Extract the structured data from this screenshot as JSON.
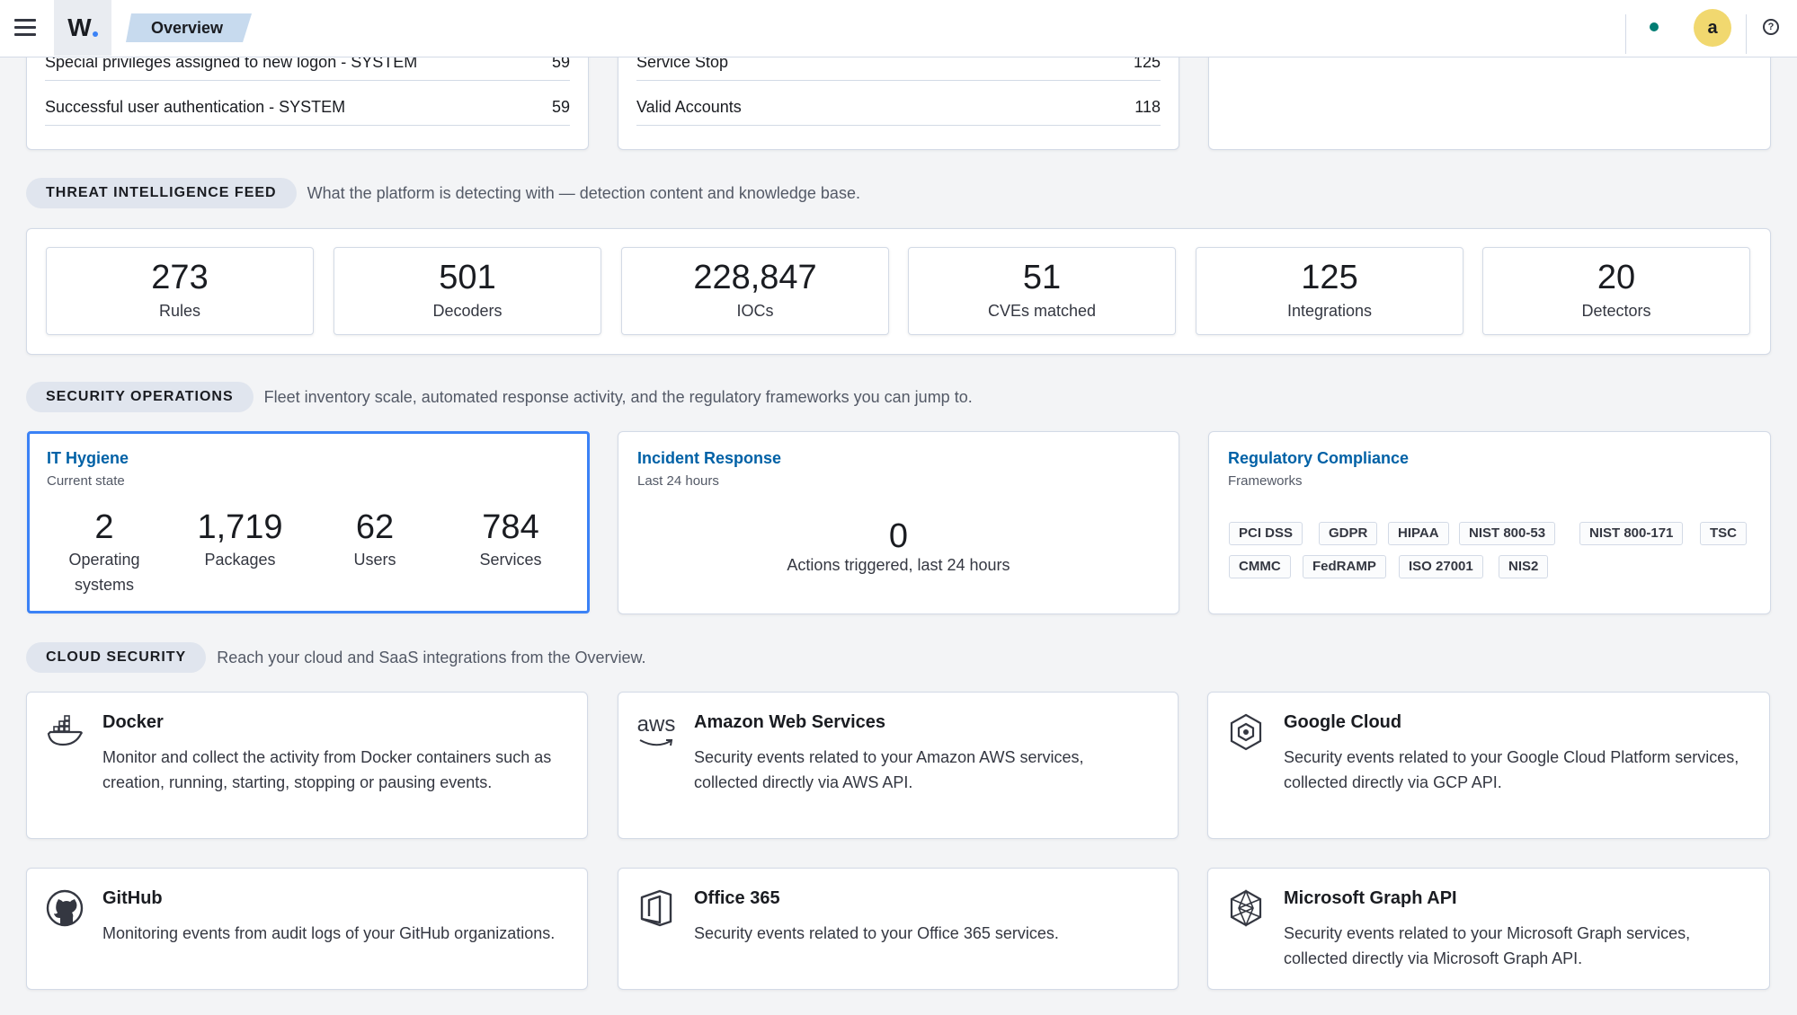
{
  "header": {
    "logo": "W",
    "breadcrumb": "Overview",
    "avatar_initial": "a",
    "help_glyph": "?",
    "status_color": "#017d73"
  },
  "top_tables": {
    "left_rows": [
      {
        "label": "Special privileges assigned to new logon - SYSTEM",
        "value": "59"
      },
      {
        "label": "Successful user authentication - SYSTEM",
        "value": "59"
      }
    ],
    "middle_rows": [
      {
        "label": "Service Stop",
        "value": "125"
      },
      {
        "label": "Valid Accounts",
        "value": "118"
      }
    ]
  },
  "threat_intel": {
    "badge": "THREAT INTELLIGENCE FEED",
    "description": "What the platform is detecting with — detection content and knowledge base.",
    "stats": [
      {
        "value": "273",
        "label": "Rules"
      },
      {
        "value": "501",
        "label": "Decoders"
      },
      {
        "value": "228,847",
        "label": "IOCs"
      },
      {
        "value": "51",
        "label": "CVEs matched"
      },
      {
        "value": "125",
        "label": "Integrations"
      },
      {
        "value": "20",
        "label": "Detectors"
      }
    ]
  },
  "security_ops": {
    "badge": "SECURITY OPERATIONS",
    "description": "Fleet inventory scale, automated response activity, and the regulatory frameworks you can jump to.",
    "it_hygiene": {
      "title": "IT Hygiene",
      "subtitle": "Current state",
      "metrics": [
        {
          "value": "2",
          "label_1": "Operating",
          "label_2": "systems"
        },
        {
          "value": "1,719",
          "label_1": "Packages",
          "label_2": ""
        },
        {
          "value": "62",
          "label_1": "Users",
          "label_2": ""
        },
        {
          "value": "784",
          "label_1": "Services",
          "label_2": ""
        }
      ]
    },
    "incident_response": {
      "title": "Incident Response",
      "subtitle": "Last 24 hours",
      "value": "0",
      "label": "Actions triggered, last 24 hours"
    },
    "compliance": {
      "title": "Regulatory Compliance",
      "subtitle": "Frameworks",
      "frameworks": [
        "PCI DSS",
        "GDPR",
        "HIPAA",
        "NIST 800-53",
        "NIST 800-171",
        "TSC",
        "CMMC",
        "FedRAMP",
        "ISO 27001",
        "NIS2"
      ]
    }
  },
  "cloud_security": {
    "badge": "CLOUD SECURITY",
    "description": "Reach your cloud and SaaS integrations from the Overview.",
    "cards": [
      {
        "title": "Docker",
        "icon": "docker-icon",
        "description": "Monitor and collect the activity from Docker containers such as creation, running, starting, stopping or pausing events."
      },
      {
        "title": "Amazon Web Services",
        "icon": "aws-icon",
        "icon_text": "aws",
        "description": "Security events related to your Amazon AWS services, collected directly via AWS API."
      },
      {
        "title": "Google Cloud",
        "icon": "google-cloud-icon",
        "description": "Security events related to your Google Cloud Platform services, collected directly via GCP API."
      },
      {
        "title": "GitHub",
        "icon": "github-icon",
        "description": "Monitoring events from audit logs of your GitHub organizations."
      },
      {
        "title": "Office 365",
        "icon": "office365-icon",
        "description": "Security events related to your Office 365 services."
      },
      {
        "title": "Microsoft Graph API",
        "icon": "microsoft-graph-icon",
        "description": "Security events related to your Microsoft Graph services, collected directly via Microsoft Graph API."
      }
    ]
  },
  "colors": {
    "link": "#0061a6",
    "selected_border": "#3b82f6",
    "avatar_bg": "#f1d86f"
  }
}
